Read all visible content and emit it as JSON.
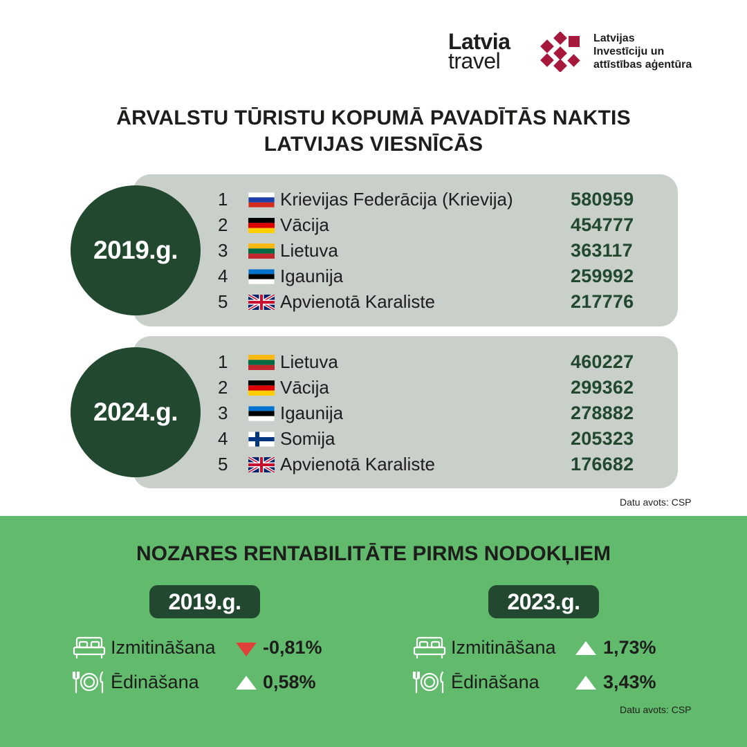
{
  "header": {
    "latvia_travel_line1": "Latvia",
    "latvia_travel_line2": "travel",
    "liaa_line1": "Latvijas",
    "liaa_line2": "Investīciju un",
    "liaa_line3": "attīstības aģentūra",
    "liaa_color": "#a6193c"
  },
  "title": {
    "line1": "ĀRVALSTU TŪRISTU KOPUMĀ PAVADĪTĀS NAKTIS",
    "line2": "LATVIJAS VIESNĪCĀS"
  },
  "ranking_2019": {
    "year_label": "2019.g.",
    "rows": [
      {
        "rank": "1",
        "flag": "russia-flag-icon",
        "country": "Krievijas Federācija (Krievija)",
        "value": "580959"
      },
      {
        "rank": "2",
        "flag": "germany-flag-icon",
        "country": "Vācija",
        "value": "454777"
      },
      {
        "rank": "3",
        "flag": "lithuania-flag-icon",
        "country": "Lietuva",
        "value": "363117"
      },
      {
        "rank": "4",
        "flag": "estonia-flag-icon",
        "country": "Igaunija",
        "value": "259992"
      },
      {
        "rank": "5",
        "flag": "uk-flag-icon",
        "country": "Apvienotā Karaliste",
        "value": "217776"
      }
    ]
  },
  "ranking_2024": {
    "year_label": "2024.g.",
    "rows": [
      {
        "rank": "1",
        "flag": "lithuania-flag-icon",
        "country": "Lietuva",
        "value": "460227"
      },
      {
        "rank": "2",
        "flag": "germany-flag-icon",
        "country": "Vācija",
        "value": "299362"
      },
      {
        "rank": "3",
        "flag": "estonia-flag-icon",
        "country": "Igaunija",
        "value": "278882"
      },
      {
        "rank": "4",
        "flag": "finland-flag-icon",
        "country": "Somija",
        "value": "205323"
      },
      {
        "rank": "5",
        "flag": "uk-flag-icon",
        "country": "Apvienotā Karaliste",
        "value": "176682"
      }
    ]
  },
  "source_top": "Datu avots: CSP",
  "profitability": {
    "title": "NOZARES RENTABILITĀTE PIRMS NODOKĻIEM",
    "col_2019": {
      "year_label": "2019.g.",
      "accommodation": {
        "label": "Izmitināšana",
        "icon": "bed-icon",
        "direction": "down",
        "value": "-0,81%"
      },
      "food": {
        "label": "Ēdināšana",
        "icon": "cutlery-icon",
        "direction": "up",
        "value": "0,58%"
      }
    },
    "col_2023": {
      "year_label": "2023.g.",
      "accommodation": {
        "label": "Izmitināšana",
        "icon": "bed-icon",
        "direction": "up",
        "value": "1,73%"
      },
      "food": {
        "label": "Ēdināšana",
        "icon": "cutlery-icon",
        "direction": "up",
        "value": "3,43%"
      }
    }
  },
  "source_bottom": "Datu avots: CSP",
  "colors": {
    "dark_green": "#22482f",
    "panel_gray": "#c8d0c9",
    "bottom_green": "#62ba6d",
    "down_arrow": "#e0413a",
    "up_arrow": "#ffffff"
  }
}
